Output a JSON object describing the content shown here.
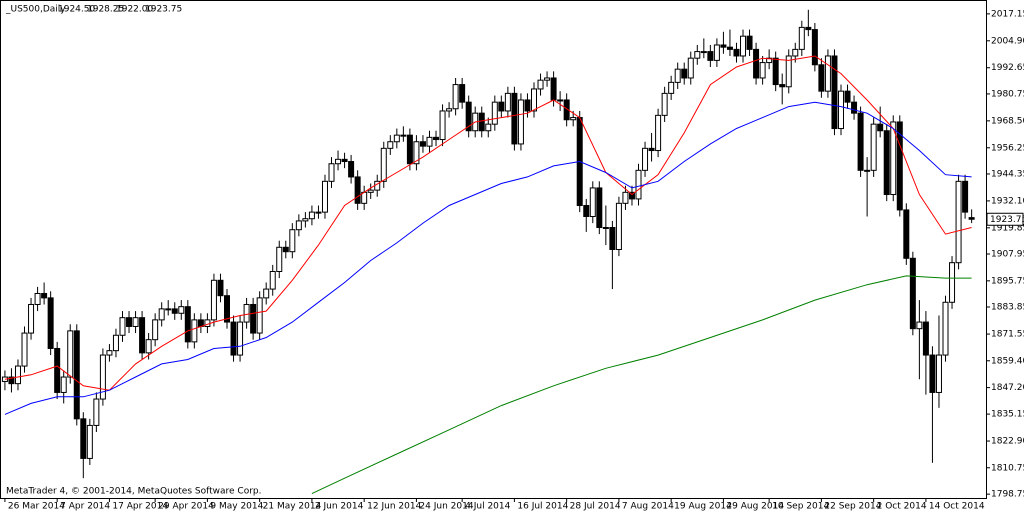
{
  "chart_data": {
    "type": "candlestick",
    "symbol": "_US500,Daily",
    "quote": [
      "1924.50",
      "1928.25",
      "1922.00",
      "1923.75"
    ],
    "copyright": "MetaTrader 4, © 2001-2014, MetaQuotes Software Corp.",
    "up_color": "#ffffff",
    "down_color": "#000000",
    "ylim": [
      1797,
      2023
    ],
    "yticks": [
      1798.75,
      1810.75,
      {
        "value": 1822.9,
        "label": "1822.90"
      },
      1835.15,
      {
        "value": 1847.2,
        "label": "1847.20"
      },
      {
        "value": 1859.4,
        "label": "1859.40"
      },
      1871.55,
      1883.85,
      1895.75,
      1907.95,
      1919.85,
      {
        "value": 1932.1,
        "label": "1932.10"
      },
      1944.35,
      1956.25,
      {
        "value": 1968.5,
        "label": "1968.50"
      },
      1980.75,
      1992.65,
      {
        "value": 2004.9,
        "label": "2004.90"
      },
      2017.15
    ],
    "xlim": [
      -0.6,
      150.2
    ],
    "xticks": [
      {
        "value": 0,
        "label": "26 Mar 2014"
      },
      {
        "value": 8,
        "label": "7 Apr 2014"
      },
      {
        "value": 16,
        "label": "17 Apr 2014"
      },
      {
        "value": 23,
        "label": "29 Apr 2014"
      },
      {
        "value": 31,
        "label": "9 May 2014"
      },
      {
        "value": 39,
        "label": "21 May 2014"
      },
      {
        "value": 47,
        "label": "2 Jun 2014"
      },
      {
        "value": 55,
        "label": "12 Jun 2014"
      },
      {
        "value": 63,
        "label": "24 Jun 2014"
      },
      {
        "value": 70,
        "label": "4 Jul 2014"
      },
      {
        "value": 78,
        "label": "16 Jul 2014"
      },
      {
        "value": 86,
        "label": "28 Jul 2014"
      },
      {
        "value": 94,
        "label": "7 Aug 2014"
      },
      {
        "value": 102,
        "label": "19 Aug 2014"
      },
      {
        "value": 110,
        "label": "29 Aug 2014"
      },
      {
        "value": 117,
        "label": "10 Sep 2014"
      },
      {
        "value": 125,
        "label": "22 Sep 2014"
      },
      {
        "value": 133,
        "label": "2 Oct 2014"
      },
      {
        "value": 141,
        "label": "14 Oct 2014"
      }
    ],
    "last_price": {
      "value": 1923.75,
      "label": "1923.75"
    },
    "ohlc": [
      [
        1850,
        1855,
        1846,
        1852
      ],
      [
        1852,
        1856,
        1845,
        1849
      ],
      [
        1849,
        1860,
        1846,
        1857
      ],
      [
        1857,
        1875,
        1854,
        1872
      ],
      [
        1872,
        1888,
        1869,
        1885
      ],
      [
        1885,
        1893,
        1882,
        1890
      ],
      [
        1890,
        1895,
        1885,
        1888
      ],
      [
        1888,
        1891,
        1862,
        1865
      ],
      [
        1865,
        1868,
        1842,
        1845
      ],
      [
        1845,
        1855,
        1840,
        1852
      ],
      [
        1852,
        1876,
        1849,
        1873
      ],
      [
        1873,
        1876,
        1830,
        1833
      ],
      [
        1833,
        1836,
        1806,
        1815
      ],
      [
        1815,
        1833,
        1812,
        1830
      ],
      [
        1830,
        1845,
        1827,
        1842
      ],
      [
        1842,
        1865,
        1839,
        1862
      ],
      [
        1862,
        1867,
        1859,
        1864
      ],
      [
        1864,
        1874,
        1861,
        1871
      ],
      [
        1871,
        1882,
        1868,
        1879
      ],
      [
        1879,
        1882,
        1872,
        1875
      ],
      [
        1875,
        1882,
        1872,
        1879
      ],
      [
        1879,
        1882,
        1860,
        1863
      ],
      [
        1863,
        1872,
        1860,
        1869
      ],
      [
        1869,
        1881,
        1866,
        1878
      ],
      [
        1878,
        1886,
        1875,
        1883
      ],
      [
        1883,
        1887,
        1880,
        1883
      ],
      [
        1883,
        1886,
        1878,
        1881
      ],
      [
        1881,
        1887,
        1878,
        1884
      ],
      [
        1884,
        1887,
        1865,
        1868
      ],
      [
        1868,
        1881,
        1865,
        1878
      ],
      [
        1878,
        1881,
        1872,
        1875
      ],
      [
        1875,
        1881,
        1872,
        1878
      ],
      [
        1878,
        1899,
        1875,
        1896
      ],
      [
        1896,
        1899,
        1886,
        1889
      ],
      [
        1889,
        1892,
        1874,
        1877
      ],
      [
        1877,
        1880,
        1859,
        1862
      ],
      [
        1862,
        1880,
        1859,
        1877
      ],
      [
        1877,
        1888,
        1874,
        1885
      ],
      [
        1885,
        1888,
        1869,
        1872
      ],
      [
        1872,
        1891,
        1869,
        1888
      ],
      [
        1888,
        1895,
        1885,
        1892
      ],
      [
        1892,
        1903,
        1889,
        1900
      ],
      [
        1900,
        1914,
        1897,
        1911
      ],
      [
        1911,
        1914,
        1906,
        1909
      ],
      [
        1909,
        1922,
        1906,
        1919
      ],
      [
        1919,
        1926,
        1916,
        1923
      ],
      [
        1923,
        1927,
        1920,
        1924
      ],
      [
        1924,
        1930,
        1921,
        1927
      ],
      [
        1927,
        1930,
        1924,
        1927
      ],
      [
        1927,
        1944,
        1924,
        1941
      ],
      [
        1941,
        1952,
        1938,
        1949
      ],
      [
        1949,
        1955,
        1946,
        1951
      ],
      [
        1951,
        1954,
        1947,
        1950
      ],
      [
        1950,
        1953,
        1940,
        1943
      ],
      [
        1943,
        1946,
        1928,
        1931
      ],
      [
        1931,
        1939,
        1928,
        1936
      ],
      [
        1936,
        1940,
        1933,
        1937
      ],
      [
        1937,
        1944,
        1934,
        1941
      ],
      [
        1941,
        1959,
        1938,
        1956
      ],
      [
        1956,
        1962,
        1953,
        1959
      ],
      [
        1959,
        1965,
        1956,
        1962
      ],
      [
        1962,
        1966,
        1959,
        1962
      ],
      [
        1962,
        1965,
        1946,
        1949
      ],
      [
        1949,
        1962,
        1946,
        1959
      ],
      [
        1959,
        1962,
        1954,
        1957
      ],
      [
        1957,
        1964,
        1954,
        1961
      ],
      [
        1961,
        1964,
        1957,
        1960
      ],
      [
        1960,
        1976,
        1957,
        1973
      ],
      [
        1973,
        1977,
        1970,
        1974
      ],
      [
        1974,
        1988,
        1971,
        1985
      ],
      [
        1985,
        1988,
        1974,
        1977
      ],
      [
        1977,
        1980,
        1961,
        1964
      ],
      [
        1964,
        1975,
        1961,
        1972
      ],
      [
        1972,
        1975,
        1961,
        1964
      ],
      [
        1964,
        1970,
        1961,
        1967
      ],
      [
        1967,
        1980,
        1964,
        1977
      ],
      [
        1977,
        1980,
        1970,
        1973
      ],
      [
        1973,
        1984,
        1970,
        1981
      ],
      [
        1981,
        1984,
        1955,
        1958
      ],
      [
        1958,
        1981,
        1955,
        1978
      ],
      [
        1978,
        1981,
        1970,
        1973
      ],
      [
        1973,
        1986,
        1970,
        1983
      ],
      [
        1983,
        1990,
        1980,
        1987
      ],
      [
        1987,
        1991,
        1984,
        1988
      ],
      [
        1988,
        1991,
        1975,
        1978
      ],
      [
        1978,
        1982,
        1973,
        1978
      ],
      [
        1978,
        1981,
        1966,
        1969
      ],
      [
        1969,
        1973,
        1966,
        1970
      ],
      [
        1970,
        1973,
        1927,
        1930
      ],
      [
        1930,
        1933,
        1918,
        1925
      ],
      [
        1925,
        1941,
        1922,
        1938
      ],
      [
        1938,
        1941,
        1917,
        1920
      ],
      [
        1920,
        1930,
        1912,
        1920
      ],
      [
        1920,
        1923,
        1892,
        1910
      ],
      [
        1910,
        1934,
        1907,
        1931
      ],
      [
        1931,
        1939,
        1928,
        1936
      ],
      [
        1936,
        1939,
        1930,
        1933
      ],
      [
        1933,
        1949,
        1930,
        1946
      ],
      [
        1946,
        1959,
        1943,
        1956
      ],
      [
        1956,
        1963,
        1950,
        1955
      ],
      [
        1955,
        1974,
        1952,
        1971
      ],
      [
        1971,
        1984,
        1968,
        1981
      ],
      [
        1981,
        1989,
        1978,
        1986
      ],
      [
        1986,
        1995,
        1983,
        1992
      ],
      [
        1992,
        1995,
        1985,
        1988
      ],
      [
        1988,
        2000,
        1985,
        1997
      ],
      [
        1997,
        2003,
        1994,
        2000
      ],
      [
        2000,
        2006,
        1997,
        2000
      ],
      [
        2000,
        2003,
        1993,
        1996
      ],
      [
        1996,
        2006,
        1993,
        2003
      ],
      [
        2003,
        2009,
        1999,
        2002
      ],
      [
        2002,
        2010,
        1998,
        2001
      ],
      [
        2001,
        2004,
        1995,
        1998
      ],
      [
        1998,
        2010,
        1995,
        2007
      ],
      [
        2007,
        2010,
        1998,
        2001
      ],
      [
        2001,
        2004,
        1985,
        1988
      ],
      [
        1988,
        1998,
        1985,
        1995
      ],
      [
        1995,
        2001,
        1992,
        1997
      ],
      [
        1997,
        2000,
        1982,
        1985
      ],
      [
        1985,
        1990,
        1976,
        1984
      ],
      [
        1984,
        2001,
        1981,
        1998
      ],
      [
        1998,
        2004,
        1995,
        2001
      ],
      [
        2001,
        2014,
        1998,
        2011
      ],
      [
        2011,
        2019,
        2007,
        2010
      ],
      [
        2010,
        2013,
        1991,
        1994
      ],
      [
        1994,
        1997,
        1979,
        1982
      ],
      [
        1982,
        2001,
        1979,
        1998
      ],
      [
        1998,
        2001,
        1962,
        1965
      ],
      [
        1965,
        1985,
        1962,
        1982
      ],
      [
        1982,
        1985,
        1974,
        1977
      ],
      [
        1977,
        1980,
        1969,
        1972
      ],
      [
        1972,
        1975,
        1943,
        1946
      ],
      [
        1946,
        1952,
        1925,
        1946
      ],
      [
        1946,
        1970,
        1943,
        1967
      ],
      [
        1967,
        1975,
        1961,
        1964
      ],
      [
        1964,
        1967,
        1932,
        1935
      ],
      [
        1935,
        1971,
        1932,
        1968
      ],
      [
        1968,
        1971,
        1925,
        1928
      ],
      [
        1928,
        1931,
        1903,
        1906
      ],
      [
        1906,
        1909,
        1871,
        1874
      ],
      [
        1874,
        1887,
        1851,
        1877
      ],
      [
        1877,
        1882,
        1844,
        1862
      ],
      [
        1862,
        1866,
        1813,
        1845
      ],
      [
        1845,
        1880,
        1838,
        1862
      ],
      [
        1862,
        1889,
        1859,
        1886
      ],
      [
        1886,
        1907,
        1883,
        1904
      ],
      [
        1904,
        1944,
        1901,
        1941
      ],
      [
        1941,
        1944,
        1924,
        1927
      ],
      [
        1924.5,
        1928.25,
        1922,
        1923.75
      ]
    ],
    "lines": [
      {
        "color": "#ff0000",
        "x": [
          0,
          4,
          8,
          12,
          16,
          20,
          24,
          28,
          32,
          36,
          40,
          44,
          48,
          52,
          56,
          60,
          64,
          68,
          72,
          76,
          80,
          84,
          88,
          92,
          96,
          100,
          104,
          108,
          112,
          116,
          120,
          124,
          128,
          132,
          136,
          140,
          144,
          148
        ],
        "values": [
          1851,
          1853,
          1857,
          1848,
          1846,
          1858,
          1866,
          1873,
          1877,
          1880,
          1882,
          1896,
          1912,
          1930,
          1938,
          1945,
          1952,
          1960,
          1968,
          1970,
          1972,
          1978,
          1970,
          1945,
          1935,
          1944,
          1963,
          1985,
          1993,
          1997,
          1996,
          1998,
          1990,
          1978,
          1965,
          1935,
          1917,
          1920
        ]
      },
      {
        "color": "#0000ff",
        "x": [
          0,
          4,
          8,
          12,
          16,
          20,
          24,
          28,
          32,
          36,
          40,
          44,
          48,
          52,
          56,
          60,
          64,
          68,
          72,
          76,
          80,
          84,
          88,
          92,
          96,
          100,
          104,
          108,
          112,
          116,
          120,
          124,
          128,
          132,
          136,
          140,
          144,
          148
        ],
        "values": [
          1835,
          1840,
          1843,
          1843,
          1846,
          1852,
          1858,
          1860,
          1865,
          1866,
          1870,
          1877,
          1886,
          1895,
          1905,
          1913,
          1922,
          1930,
          1935,
          1940,
          1943,
          1948,
          1950,
          1945,
          1938,
          1941,
          1950,
          1958,
          1965,
          1970,
          1975,
          1977,
          1975,
          1972,
          1965,
          1955,
          1944,
          1943
        ]
      },
      {
        "color": "#008000",
        "x": [
          47,
          52,
          60,
          68,
          76,
          84,
          92,
          100,
          108,
          116,
          124,
          132,
          138,
          144,
          148
        ],
        "values": [
          1799,
          1806,
          1817,
          1828,
          1839,
          1848,
          1856,
          1862,
          1870,
          1878,
          1887,
          1894,
          1898,
          1897,
          1897
        ]
      }
    ]
  }
}
